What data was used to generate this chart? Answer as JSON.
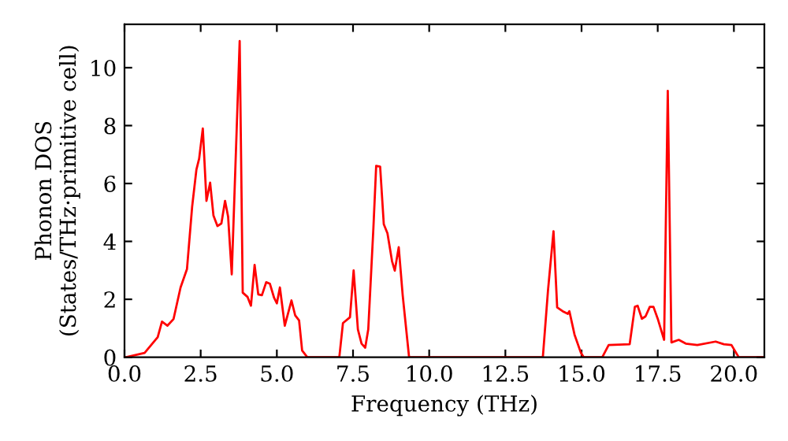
{
  "chart_data": {
    "type": "line",
    "xlabel": "Frequency (THz)",
    "ylabel": "Phonon DOS\n(States/THz·primitive cell)",
    "xlim": [
      0,
      21
    ],
    "ylim": [
      0,
      11.5
    ],
    "xticks": [
      {
        "value": 0,
        "label": "0.0"
      },
      {
        "value": 2.5,
        "label": "2.5"
      },
      {
        "value": 5,
        "label": "5.0"
      },
      {
        "value": 7.5,
        "label": "7.5"
      },
      {
        "value": 10,
        "label": "10.0"
      },
      {
        "value": 12.5,
        "label": "12.5"
      },
      {
        "value": 15,
        "label": "15.0"
      },
      {
        "value": 17.5,
        "label": "17.5"
      },
      {
        "value": 20,
        "label": "20.0"
      }
    ],
    "yticks": [
      0,
      2,
      4,
      6,
      8,
      10
    ],
    "grid": false,
    "marker": "none",
    "line_style": "solid",
    "series": [
      {
        "color": "#ff0000",
        "x": [
          0.05,
          0.66,
          1.09,
          1.23,
          1.41,
          1.61,
          1.84,
          2.05,
          2.22,
          2.36,
          2.45,
          2.57,
          2.69,
          2.81,
          2.92,
          3.05,
          3.18,
          3.3,
          3.4,
          3.52,
          3.78,
          3.88,
          4.04,
          4.15,
          4.27,
          4.39,
          4.51,
          4.65,
          4.77,
          4.91,
          5.0,
          5.1,
          5.26,
          5.48,
          5.6,
          5.73,
          5.83,
          6.0,
          7.05,
          7.17,
          7.4,
          7.52,
          7.66,
          7.78,
          7.9,
          8.0,
          8.17,
          8.26,
          8.39,
          8.51,
          8.63,
          8.78,
          8.87,
          9.0,
          9.13,
          9.34,
          13.73,
          13.9,
          14.08,
          14.2,
          14.38,
          14.55,
          14.6,
          14.77,
          14.98,
          15.07,
          15.68,
          15.89,
          16.58,
          16.75,
          16.84,
          16.98,
          17.1,
          17.24,
          17.36,
          17.5,
          17.71,
          17.83,
          17.95,
          18.19,
          18.42,
          18.8,
          19.4,
          19.67,
          19.92,
          20.16,
          21
        ],
        "values": [
          0,
          0.15,
          0.69,
          1.23,
          1.09,
          1.32,
          2.41,
          3.04,
          5.2,
          6.48,
          6.86,
          7.9,
          5.4,
          6.03,
          4.89,
          4.53,
          4.62,
          5.4,
          4.86,
          2.86,
          10.92,
          2.23,
          2.08,
          1.78,
          3.19,
          2.17,
          2.14,
          2.59,
          2.54,
          2.05,
          1.86,
          2.41,
          1.09,
          1.96,
          1.45,
          1.27,
          0.23,
          0,
          0,
          1.18,
          1.38,
          3.0,
          0.96,
          0.47,
          0.33,
          0.96,
          4.49,
          6.61,
          6.58,
          4.59,
          4.28,
          3.32,
          2.99,
          3.8,
          2.14,
          0,
          0,
          2.32,
          4.35,
          1.72,
          1.59,
          1.5,
          1.59,
          0.78,
          0.15,
          0,
          0,
          0.42,
          0.45,
          1.74,
          1.78,
          1.33,
          1.41,
          1.74,
          1.74,
          1.33,
          0.6,
          9.2,
          0.51,
          0.6,
          0.47,
          0.42,
          0.54,
          0.45,
          0.42,
          0,
          0
        ]
      }
    ]
  }
}
